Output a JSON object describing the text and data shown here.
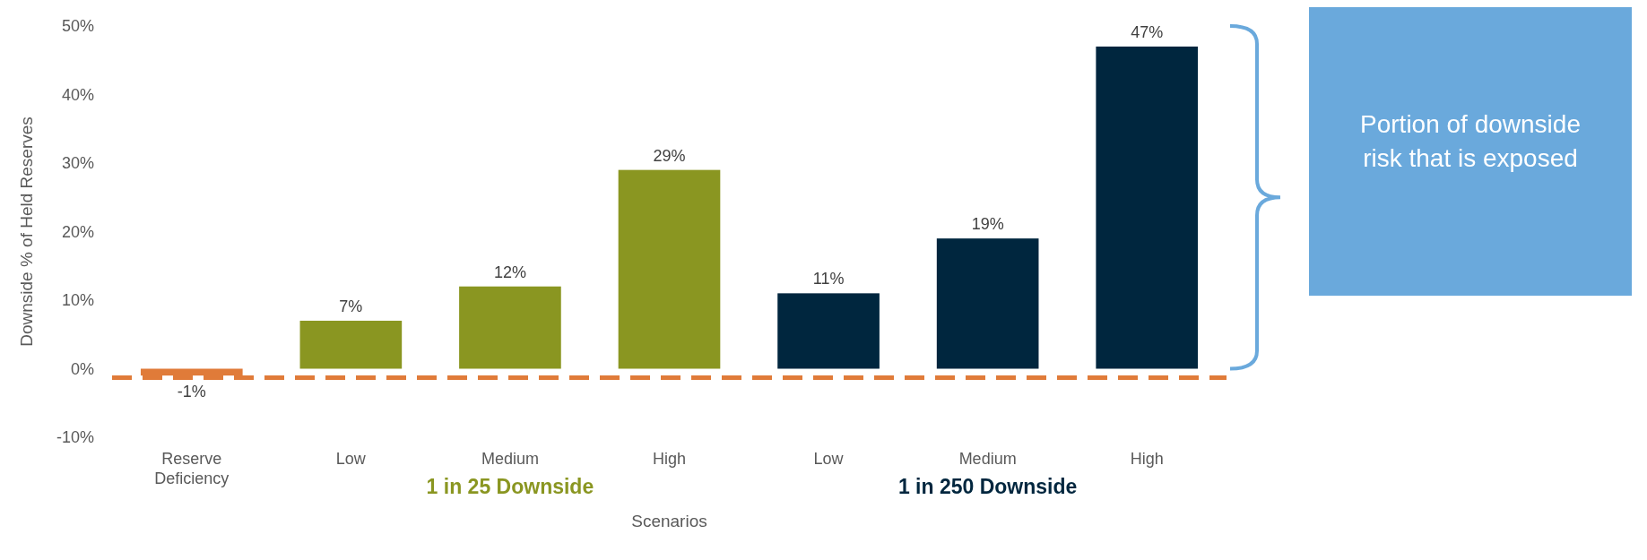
{
  "chart_data": {
    "type": "bar",
    "xlabel": "Scenarios",
    "ylabel": "Downside % of Held Reserves",
    "categories": [
      "Reserve Deficiency",
      "Low",
      "Medium",
      "High",
      "Low",
      "Medium",
      "High"
    ],
    "series": [
      {
        "color": "#e07b39",
        "values": [
          -1,
          null,
          null,
          null,
          null,
          null,
          null
        ],
        "value_labels": [
          "-1%",
          null,
          null,
          null,
          null,
          null,
          null
        ]
      },
      {
        "name": "1 in 25 Downside",
        "color": "#8a9621",
        "values": [
          null,
          7,
          12,
          29,
          null,
          null,
          null
        ],
        "value_labels": [
          null,
          "7%",
          "12%",
          "29%",
          null,
          null,
          null
        ]
      },
      {
        "name": "1 in 250 Downside",
        "color": "#00263e",
        "values": [
          null,
          null,
          null,
          null,
          11,
          19,
          47
        ],
        "value_labels": [
          null,
          null,
          null,
          null,
          "11%",
          "19%",
          "47%"
        ]
      }
    ],
    "ylim": [
      -10,
      50
    ],
    "yticks": [
      {
        "value": -10,
        "label": "-10%"
      },
      {
        "value": 0,
        "label": "0%"
      },
      {
        "value": 10,
        "label": "10%"
      },
      {
        "value": 20,
        "label": "20%"
      },
      {
        "value": 30,
        "label": "30%"
      },
      {
        "value": 40,
        "label": "40%"
      },
      {
        "value": 50,
        "label": "50%"
      }
    ],
    "ref_lines": [
      {
        "axis": "y",
        "value": -1.3,
        "color": "#e07b39",
        "line_style": "dashed"
      }
    ],
    "annotations": [
      "Portion of downside risk that is exposed"
    ]
  }
}
